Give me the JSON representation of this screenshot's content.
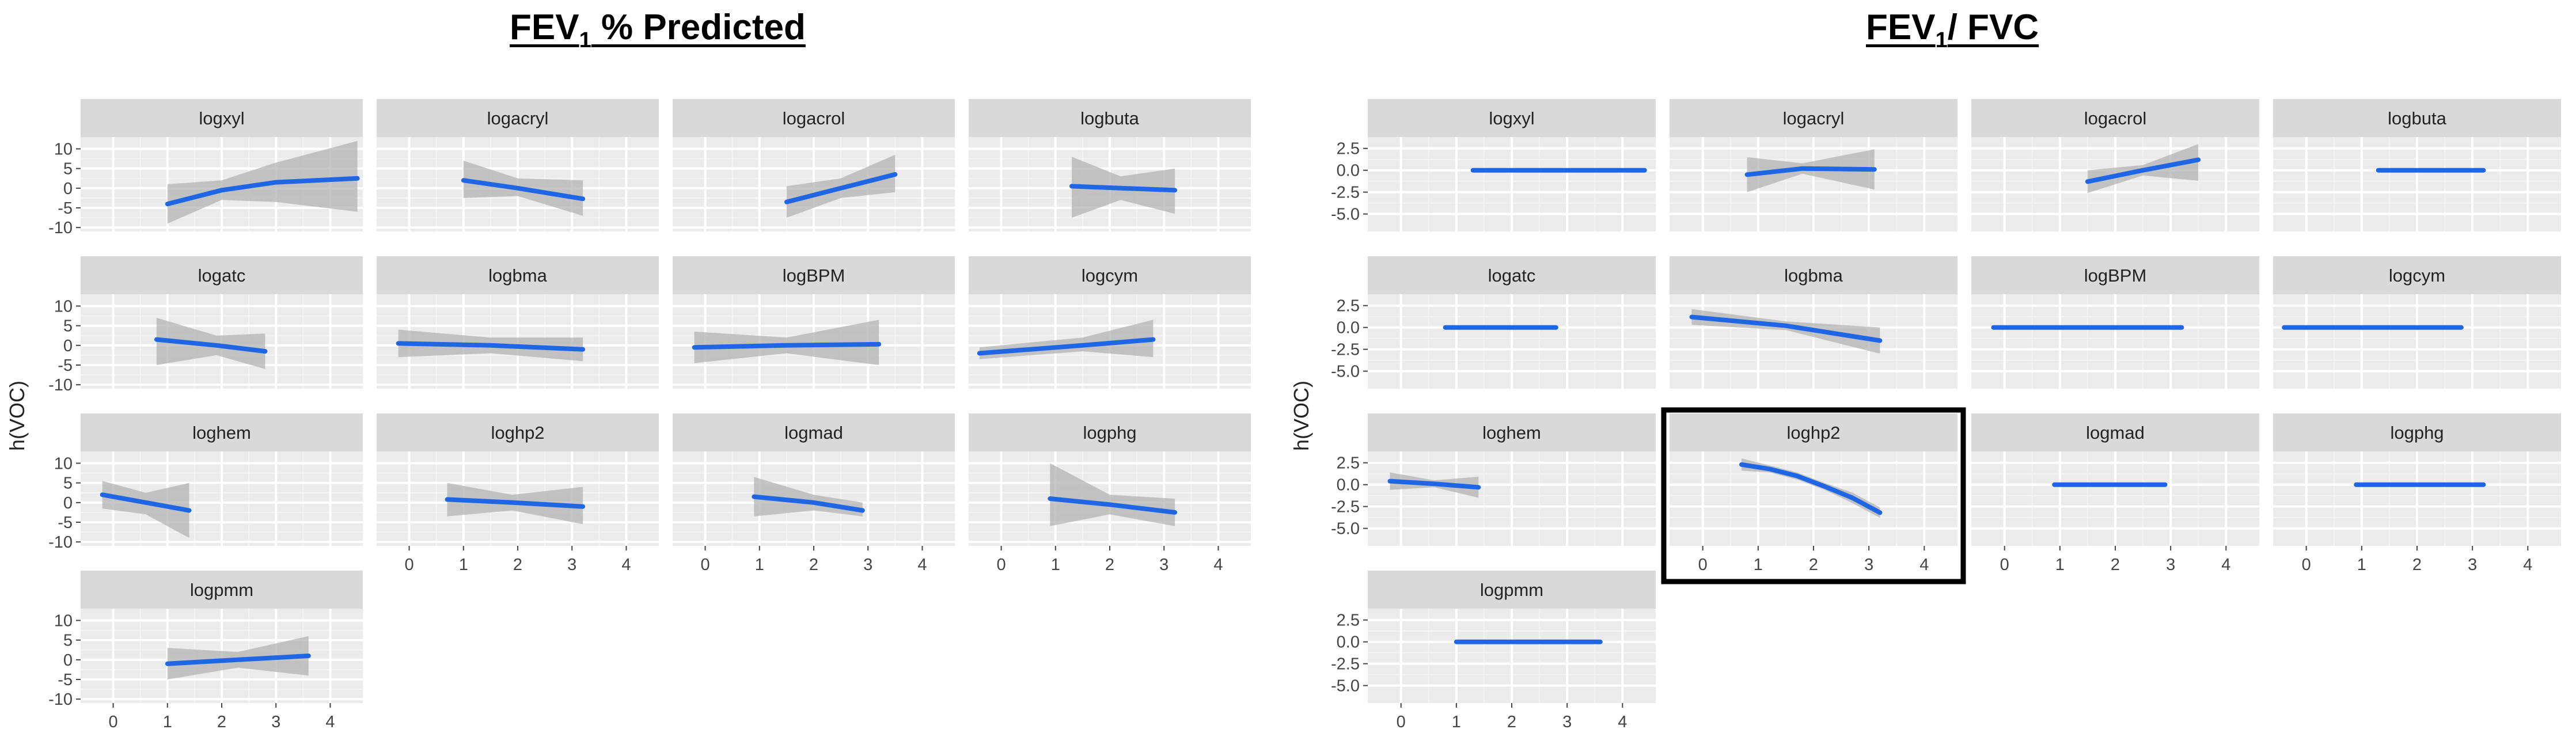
{
  "figure": {
    "left_title": {
      "main": "FEV",
      "sub": "1",
      "rest": " % Predicted"
    },
    "right_title": {
      "main": "FEV",
      "sub": "1",
      "rest": "/ FVC"
    }
  },
  "chart_data": [
    {
      "type": "line",
      "title": "FEV1 % Predicted",
      "ylabel": "h(VOC)",
      "xlabel": "",
      "xlim": [
        -0.6,
        4.6
      ],
      "ylim": [
        -11,
        13
      ],
      "x_ticks": [
        0,
        1,
        2,
        3,
        4
      ],
      "x_tick_labels": [
        "0",
        "1",
        "2",
        "3",
        "4"
      ],
      "y_ticks": [
        10,
        5,
        0,
        -5,
        -10
      ],
      "y_tick_labels": [
        "10",
        "5",
        "0",
        "-5",
        "-10"
      ],
      "highlight_facet": null,
      "facets": [
        {
          "name": "logxyl",
          "x": [
            1,
            2,
            3,
            4.5
          ],
          "y": [
            -4,
            -0.5,
            1.5,
            2.5
          ],
          "lower": [
            -9,
            -3,
            -3.5,
            -6
          ],
          "upper": [
            1,
            2,
            6.5,
            12
          ]
        },
        {
          "name": "logacryl",
          "x": [
            1,
            2,
            3.2
          ],
          "y": [
            2,
            0,
            -2.7
          ],
          "lower": [
            -2.5,
            -2,
            -7
          ],
          "upper": [
            7,
            2.5,
            2
          ]
        },
        {
          "name": "logacrol",
          "x": [
            1.5,
            2.5,
            3.5
          ],
          "y": [
            -3.5,
            0,
            3.5
          ],
          "lower": [
            -7.5,
            -2.5,
            -1
          ],
          "upper": [
            0.5,
            2.5,
            8.5
          ]
        },
        {
          "name": "logbuta",
          "x": [
            1.3,
            2.2,
            3.2
          ],
          "y": [
            0.5,
            0,
            -0.5
          ],
          "lower": [
            -7.5,
            -3,
            -6.5
          ],
          "upper": [
            8,
            3,
            5
          ]
        },
        {
          "name": "logatc",
          "x": [
            0.8,
            1.9,
            2.8
          ],
          "y": [
            1.5,
            0,
            -1.5
          ],
          "lower": [
            -5,
            -2.5,
            -6
          ],
          "upper": [
            7,
            2.5,
            3
          ]
        },
        {
          "name": "logbma",
          "x": [
            -0.2,
            1.5,
            3.2
          ],
          "y": [
            0.5,
            0,
            -1
          ],
          "lower": [
            -3,
            -2,
            -4
          ],
          "upper": [
            4,
            2,
            2
          ]
        },
        {
          "name": "logBPM",
          "x": [
            -0.2,
            1.5,
            3.2
          ],
          "y": [
            -0.5,
            0,
            0.3
          ],
          "lower": [
            -4.5,
            -2,
            -5
          ],
          "upper": [
            3.5,
            2,
            6.5
          ]
        },
        {
          "name": "logcym",
          "x": [
            -0.4,
            1.5,
            2.8
          ],
          "y": [
            -2,
            0,
            1.5
          ],
          "lower": [
            -3.5,
            -1.5,
            -3
          ],
          "upper": [
            -0.5,
            2,
            6.5
          ]
        },
        {
          "name": "loghem",
          "x": [
            -0.2,
            0.6,
            1.4
          ],
          "y": [
            2,
            0,
            -2
          ],
          "lower": [
            -1.5,
            -3,
            -9
          ],
          "upper": [
            5.5,
            2.5,
            5
          ]
        },
        {
          "name": "loghp2",
          "x": [
            0.7,
            1.9,
            3.2
          ],
          "y": [
            0.8,
            0,
            -1
          ],
          "lower": [
            -3.5,
            -2,
            -5.5
          ],
          "upper": [
            5,
            2,
            4
          ]
        },
        {
          "name": "logmad",
          "x": [
            0.9,
            2,
            2.9
          ],
          "y": [
            1.5,
            0,
            -2
          ],
          "lower": [
            -3.5,
            -2,
            -3.5
          ],
          "upper": [
            6.5,
            2,
            0
          ]
        },
        {
          "name": "logphg",
          "x": [
            0.9,
            2,
            3.2
          ],
          "y": [
            1,
            -0.5,
            -2.5
          ],
          "lower": [
            -6,
            -3,
            -6
          ],
          "upper": [
            10,
            2,
            1
          ]
        },
        {
          "name": "logpmm",
          "x": [
            1,
            2.3,
            3.6
          ],
          "y": [
            -1,
            0,
            1
          ],
          "lower": [
            -5,
            -2,
            -4
          ],
          "upper": [
            3,
            2,
            6
          ]
        }
      ]
    },
    {
      "type": "line",
      "title": "FEV1/ FVC",
      "ylabel": "h(VOC)",
      "xlabel": "",
      "xlim": [
        -0.6,
        4.6
      ],
      "ylim": [
        -7,
        3.8
      ],
      "x_ticks": [
        0,
        1,
        2,
        3,
        4
      ],
      "x_tick_labels": [
        "0",
        "1",
        "2",
        "3",
        "4"
      ],
      "y_ticks": [
        2.5,
        0,
        -2.5,
        -5
      ],
      "y_tick_labels": [
        "2.5",
        "0.0",
        "-2.5",
        "-5.0"
      ],
      "highlight_facet": "loghp2",
      "facets": [
        {
          "name": "logxyl",
          "x": [
            1.3,
            4.4
          ],
          "y": [
            0,
            0
          ],
          "lower": [
            -0.25,
            -0.25
          ],
          "upper": [
            0.25,
            0.25
          ]
        },
        {
          "name": "logacryl",
          "x": [
            0.8,
            1.8,
            3.1
          ],
          "y": [
            -0.5,
            0.2,
            0.1
          ],
          "lower": [
            -2.5,
            -0.4,
            -2.2
          ],
          "upper": [
            1.5,
            0.8,
            2.4
          ]
        },
        {
          "name": "logacrol",
          "x": [
            1.5,
            2.5,
            3.5
          ],
          "y": [
            -1.3,
            0,
            1.2
          ],
          "lower": [
            -2.6,
            -0.6,
            -1.2
          ],
          "upper": [
            0,
            0.6,
            3
          ]
        },
        {
          "name": "logbuta",
          "x": [
            1.3,
            3.2
          ],
          "y": [
            0,
            0
          ],
          "lower": [
            -0.25,
            -0.25
          ],
          "upper": [
            0.25,
            0.25
          ]
        },
        {
          "name": "logatc",
          "x": [
            0.8,
            2.8
          ],
          "y": [
            0,
            0
          ],
          "lower": [
            -0.25,
            -0.25
          ],
          "upper": [
            0.25,
            0.25
          ]
        },
        {
          "name": "logbma",
          "x": [
            -0.2,
            1.5,
            3.2
          ],
          "y": [
            1.2,
            0.2,
            -1.5
          ],
          "lower": [
            0.3,
            -0.3,
            -3
          ],
          "upper": [
            2.1,
            0.7,
            0
          ]
        },
        {
          "name": "logBPM",
          "x": [
            -0.2,
            3.2
          ],
          "y": [
            0,
            0
          ],
          "lower": [
            -0.25,
            -0.25
          ],
          "upper": [
            0.25,
            0.25
          ]
        },
        {
          "name": "logcym",
          "x": [
            -0.4,
            2.8
          ],
          "y": [
            0,
            0
          ],
          "lower": [
            -0.25,
            -0.25
          ],
          "upper": [
            0.25,
            0.25
          ]
        },
        {
          "name": "loghem",
          "x": [
            -0.2,
            0.6,
            1.4
          ],
          "y": [
            0.4,
            0.1,
            -0.3
          ],
          "lower": [
            -0.6,
            -0.3,
            -1.5
          ],
          "upper": [
            1.4,
            0.5,
            0.9
          ]
        },
        {
          "name": "loghp2",
          "x": [
            0.7,
            1.2,
            1.7,
            2.2,
            2.7,
            3.2
          ],
          "y": [
            2.3,
            1.8,
            1,
            -0.2,
            -1.5,
            -3.2
          ],
          "lower": [
            1.6,
            1.4,
            0.6,
            -0.6,
            -2.1,
            -3.8
          ],
          "upper": [
            3,
            2.2,
            1.4,
            0.2,
            -0.9,
            -2.6
          ]
        },
        {
          "name": "logmad",
          "x": [
            0.9,
            2.9
          ],
          "y": [
            0,
            0
          ],
          "lower": [
            -0.25,
            -0.25
          ],
          "upper": [
            0.25,
            0.25
          ]
        },
        {
          "name": "logphg",
          "x": [
            0.9,
            3.2
          ],
          "y": [
            0,
            0
          ],
          "lower": [
            -0.25,
            -0.25
          ],
          "upper": [
            0.25,
            0.25
          ]
        },
        {
          "name": "logpmm",
          "x": [
            1,
            3.6
          ],
          "y": [
            0,
            0
          ],
          "lower": [
            -0.25,
            -0.25
          ],
          "upper": [
            0.25,
            0.25
          ]
        }
      ]
    }
  ]
}
